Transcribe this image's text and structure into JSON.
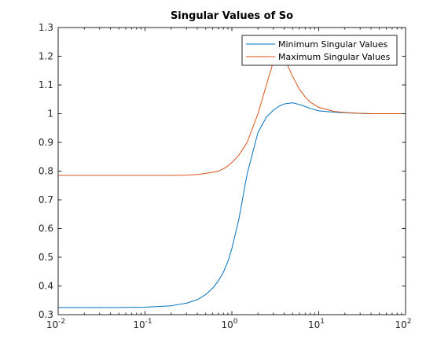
{
  "chart_data": {
    "type": "line",
    "title": "Singular Values of So",
    "xlabel": "",
    "ylabel": "",
    "x_scale": "log",
    "xlim": [
      0.01,
      100
    ],
    "ylim": [
      0.3,
      1.3
    ],
    "x_ticks": [
      0.01,
      0.1,
      1,
      10,
      100
    ],
    "x_tick_labels": [
      {
        "base": "10",
        "exp": "-2"
      },
      {
        "base": "10",
        "exp": "-1"
      },
      {
        "base": "10",
        "exp": "0"
      },
      {
        "base": "10",
        "exp": "1"
      },
      {
        "base": "10",
        "exp": "2"
      }
    ],
    "y_ticks": [
      0.3,
      0.4,
      0.5,
      0.6,
      0.7,
      0.8,
      0.9,
      1.0,
      1.1,
      1.2,
      1.3
    ],
    "y_tick_labels": [
      "0.3",
      "0.4",
      "0.5",
      "0.6",
      "0.7",
      "0.8",
      "0.9",
      "1",
      "1.1",
      "1.2",
      "1.3"
    ],
    "grid": false,
    "legend_position": "top-right",
    "series": [
      {
        "name": "Minimum Singular Values",
        "color": "#0072BD",
        "x": [
          0.01,
          0.05,
          0.1,
          0.2,
          0.3,
          0.4,
          0.5,
          0.6,
          0.7,
          0.8,
          0.9,
          1.0,
          1.2,
          1.5,
          2.0,
          2.5,
          3.0,
          3.5,
          4.0,
          5.0,
          6.0,
          7.0,
          8.0,
          10,
          15,
          20,
          30,
          40,
          50,
          70,
          100
        ],
        "y": [
          0.325,
          0.325,
          0.326,
          0.331,
          0.34,
          0.352,
          0.37,
          0.392,
          0.418,
          0.448,
          0.485,
          0.53,
          0.63,
          0.79,
          0.935,
          0.988,
          1.012,
          1.026,
          1.034,
          1.038,
          1.032,
          1.025,
          1.018,
          1.01,
          1.005,
          1.003,
          1.001,
          1.0,
          1.0,
          1.0,
          1.0
        ]
      },
      {
        "name": "Maximum Singular Values",
        "color": "#D95319",
        "x": [
          0.01,
          0.05,
          0.1,
          0.2,
          0.3,
          0.4,
          0.5,
          0.6,
          0.7,
          0.8,
          0.9,
          1.0,
          1.2,
          1.5,
          2.0,
          2.5,
          3.0,
          3.5,
          4.0,
          5.0,
          6.0,
          7.0,
          8.0,
          10,
          15,
          20,
          30,
          40,
          50,
          70,
          100
        ],
        "y": [
          0.785,
          0.785,
          0.785,
          0.785,
          0.786,
          0.788,
          0.792,
          0.796,
          0.8,
          0.808,
          0.818,
          0.83,
          0.855,
          0.9,
          1.0,
          1.1,
          1.18,
          1.215,
          1.195,
          1.13,
          1.085,
          1.058,
          1.04,
          1.022,
          1.008,
          1.004,
          1.001,
          1.0,
          1.0,
          1.0,
          1.0
        ]
      }
    ]
  }
}
